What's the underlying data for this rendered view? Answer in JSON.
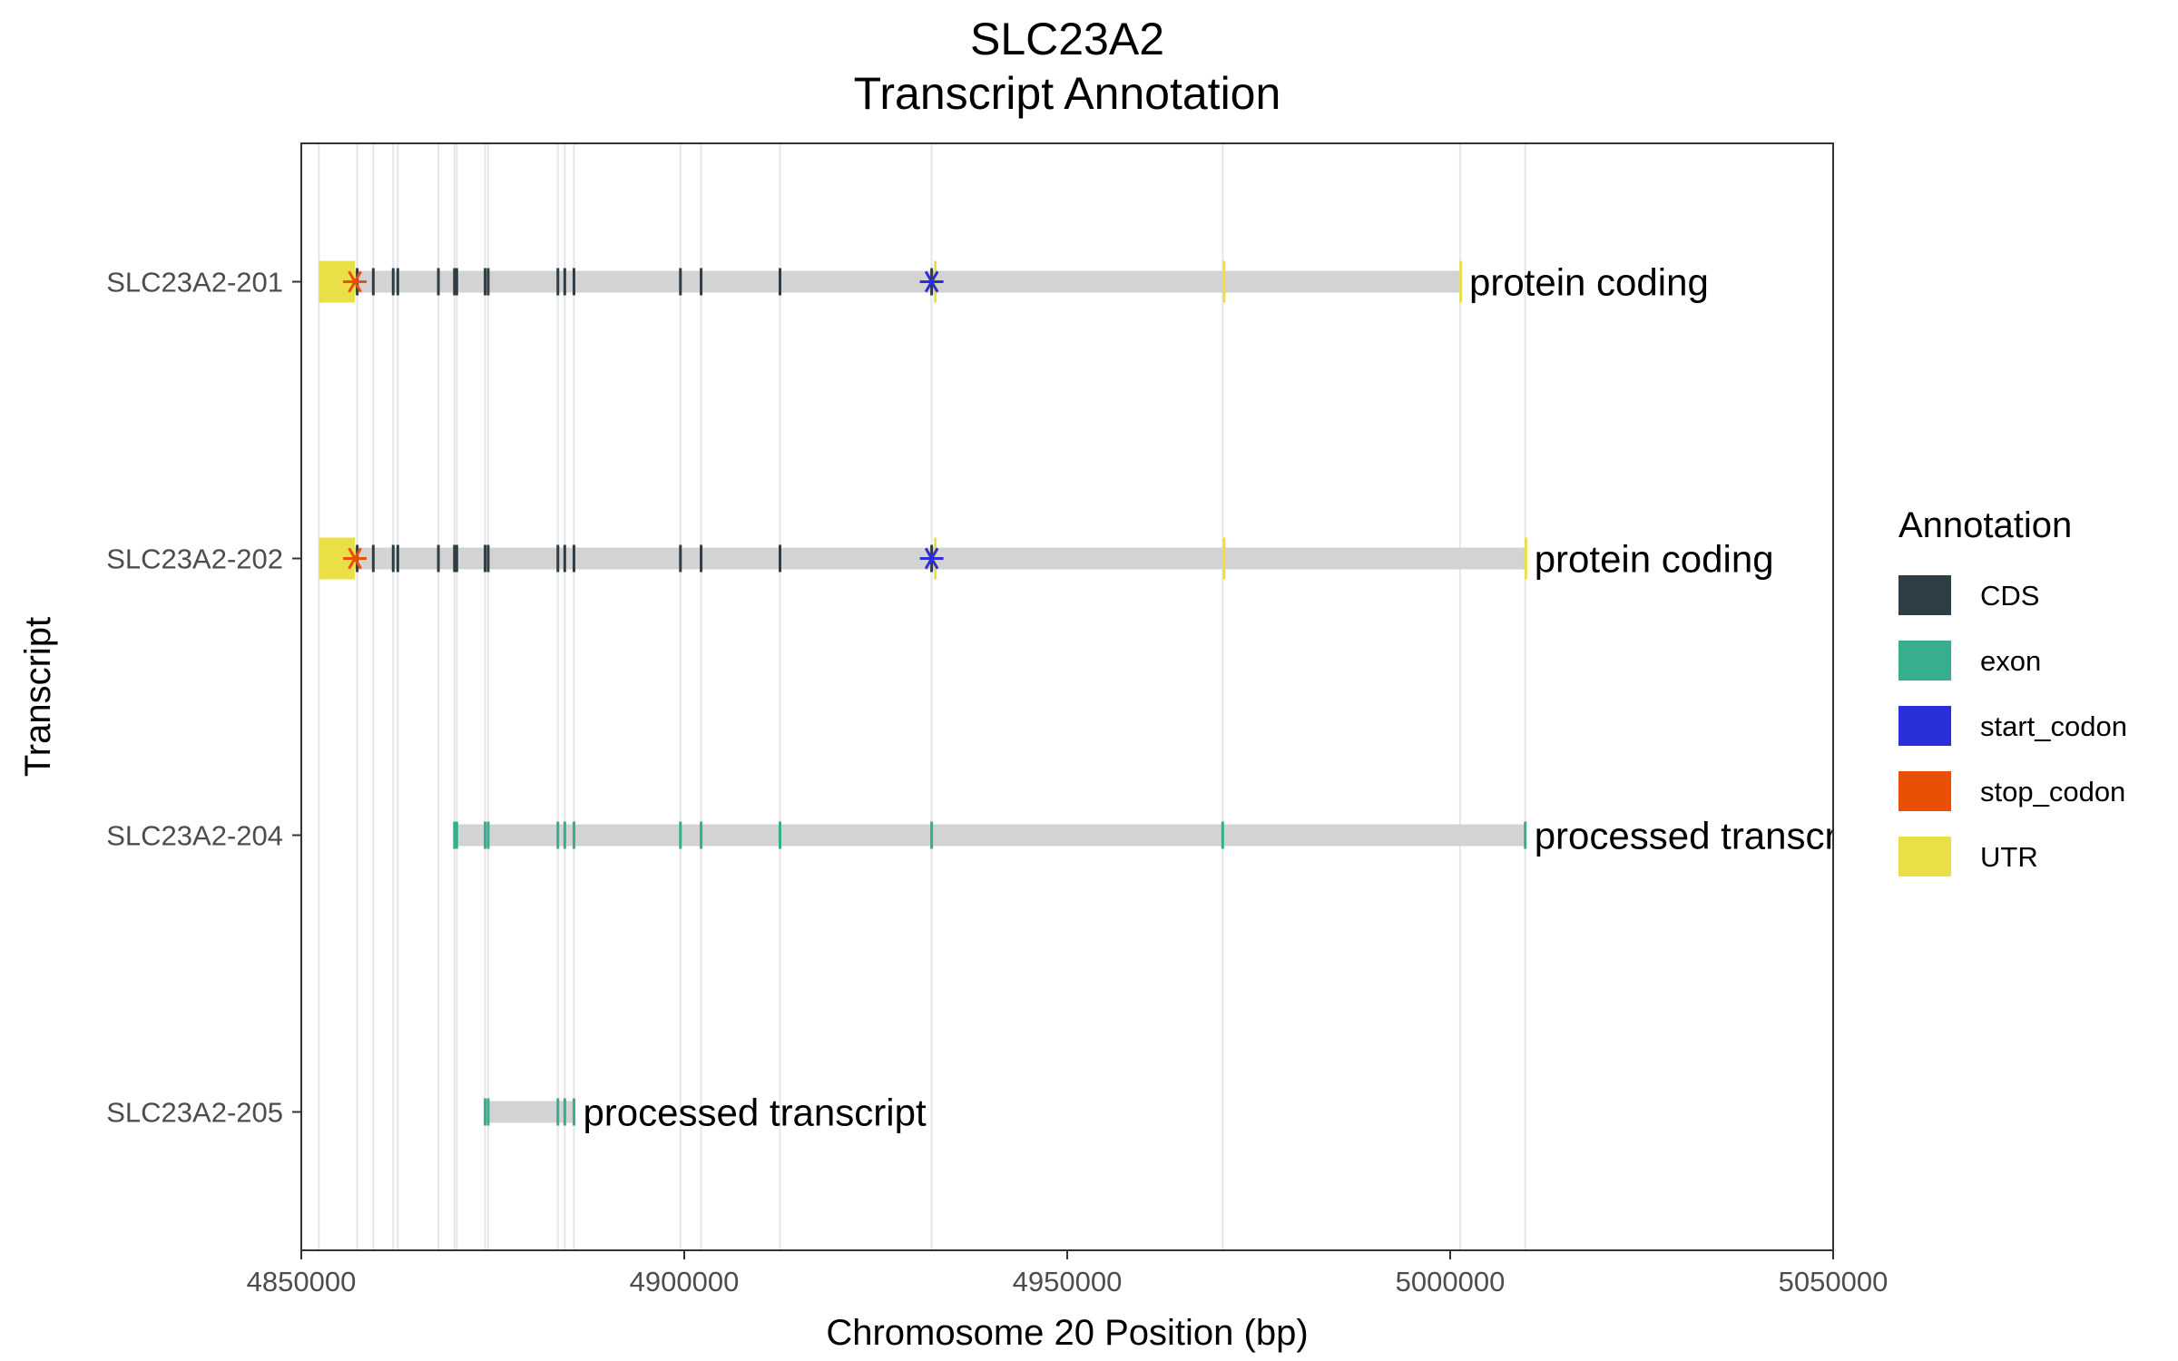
{
  "chart_data": {
    "type": "gantt",
    "title": "SLC23A2",
    "subtitle": "Transcript Annotation",
    "xlabel": "Chromosome 20 Position (bp)",
    "ylabel": "Transcript",
    "xlim": [
      4850000,
      5050000
    ],
    "x_ticks": [
      "4850000",
      "4900000",
      "4950000",
      "5000000",
      "5050000"
    ],
    "x_tick_values": [
      4850000,
      4900000,
      4950000,
      5000000,
      5050000
    ],
    "gridlines_x": [
      4852300,
      4857300,
      4859400,
      4862000,
      4862600,
      4867900,
      4870000,
      4870300,
      4874000,
      4874400,
      4883500,
      4884400,
      4885600,
      4899500,
      4902200,
      4912500,
      4932300,
      4970300,
      5001300,
      5009800
    ],
    "legend": {
      "title": "Annotation",
      "position": "right",
      "items": [
        {
          "label": "CDS",
          "color": "#2f3d46"
        },
        {
          "label": "exon",
          "color": "#37ae8e"
        },
        {
          "label": "start_codon",
          "color": "#2b2fd9"
        },
        {
          "label": "stop_codon",
          "color": "#ea5005"
        },
        {
          "label": "UTR",
          "color": "#e9e048"
        }
      ]
    },
    "colors": {
      "intron": "#d3d3d3",
      "CDS": "#2f3d46",
      "exon": "#37ae8e",
      "start_codon": "#2b2fd9",
      "stop_codon": "#ea5005",
      "UTR": "#e9e048",
      "grid": "#e6e6e6",
      "axis_text": "#4d4d4d"
    },
    "transcripts": [
      {
        "name": "SLC23A2-205",
        "biotype_label": "processed transcript",
        "start": 4874000,
        "end": 4885600,
        "exons": [
          4874000,
          4874400,
          4883500,
          4884400,
          4885600
        ],
        "cds": [],
        "utr": [],
        "start_codon": null,
        "stop_codon": null
      },
      {
        "name": "SLC23A2-204",
        "biotype_label": "processed transcript",
        "start": 4870000,
        "end": 5009800,
        "exons": [
          4870000,
          4870300,
          4874000,
          4874400,
          4883500,
          4884400,
          4885600,
          4899500,
          4902200,
          4912500,
          4932300,
          4970300,
          5009800
        ],
        "cds": [],
        "utr": [],
        "start_codon": null,
        "stop_codon": null
      },
      {
        "name": "SLC23A2-202",
        "biotype_label": "protein coding",
        "start": 4852300,
        "end": 5009800,
        "exons": [],
        "cds": [
          4857300,
          4859400,
          4862000,
          4862600,
          4867900,
          4870000,
          4870300,
          4874000,
          4874400,
          4883500,
          4884400,
          4885600,
          4899500,
          4902200,
          4912500,
          4932300
        ],
        "utr": [
          [
            4852300,
            4857000
          ],
          [
            4932600,
            4932800
          ],
          [
            4970300,
            4970500
          ],
          [
            5009700,
            5009800
          ]
        ],
        "start_codon": 4932300,
        "stop_codon": 4857000
      },
      {
        "name": "SLC23A2-201",
        "biotype_label": "protein coding",
        "start": 4852300,
        "end": 5001300,
        "exons": [],
        "cds": [
          4857300,
          4859400,
          4862000,
          4862600,
          4867900,
          4870000,
          4870300,
          4874000,
          4874400,
          4883500,
          4884400,
          4885600,
          4899500,
          4902200,
          4912500,
          4932300
        ],
        "utr": [
          [
            4852300,
            4857000
          ],
          [
            4932600,
            4932800
          ],
          [
            4970300,
            4970500
          ],
          [
            5001200,
            5001300
          ]
        ],
        "start_codon": 4932300,
        "stop_codon": 4857000
      }
    ]
  }
}
